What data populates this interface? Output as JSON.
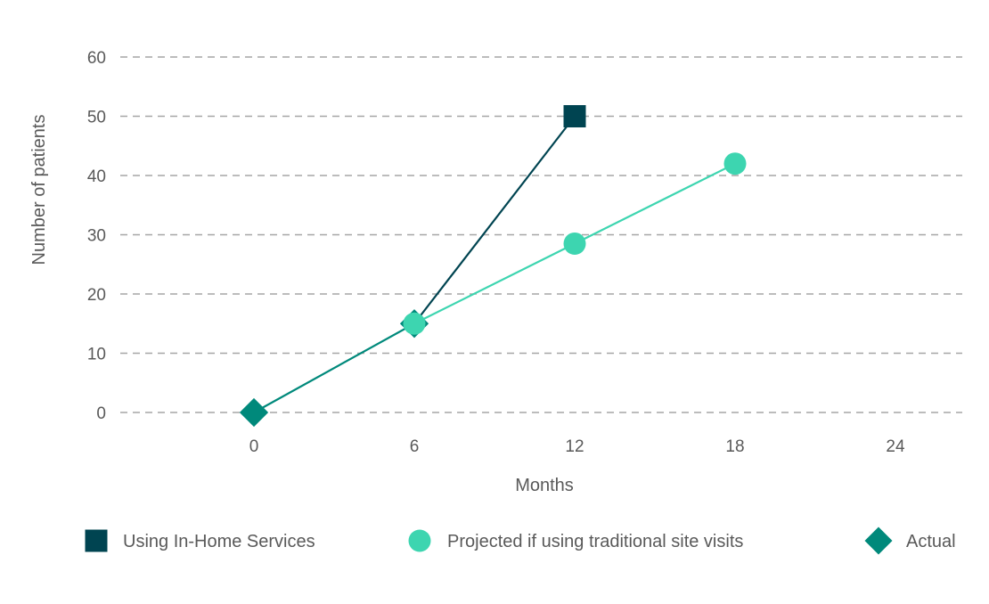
{
  "chart_data": {
    "type": "line",
    "title": "",
    "xlabel": "Months",
    "ylabel": "Number of patients",
    "xlim": [
      -5,
      26.5
    ],
    "ylim": [
      0,
      60
    ],
    "x_ticks": [
      0,
      6,
      12,
      18,
      24
    ],
    "y_ticks": [
      0,
      10,
      20,
      30,
      40,
      50,
      60
    ],
    "grid": true,
    "legend_position": "bottom",
    "series": [
      {
        "name": "Using In-Home Services",
        "color": "#004451",
        "marker": "square",
        "points": [
          {
            "x": 6,
            "y": 15
          },
          {
            "x": 12,
            "y": 50
          }
        ]
      },
      {
        "name": "Projected if using traditional site visits",
        "color": "#3dd5b0",
        "marker": "circle",
        "points": [
          {
            "x": 6,
            "y": 15
          },
          {
            "x": 12,
            "y": 28.5
          },
          {
            "x": 18,
            "y": 42
          }
        ]
      },
      {
        "name": "Actual",
        "color": "#00897b",
        "marker": "diamond",
        "points": [
          {
            "x": 0,
            "y": 0
          },
          {
            "x": 6,
            "y": 15
          }
        ]
      }
    ]
  }
}
